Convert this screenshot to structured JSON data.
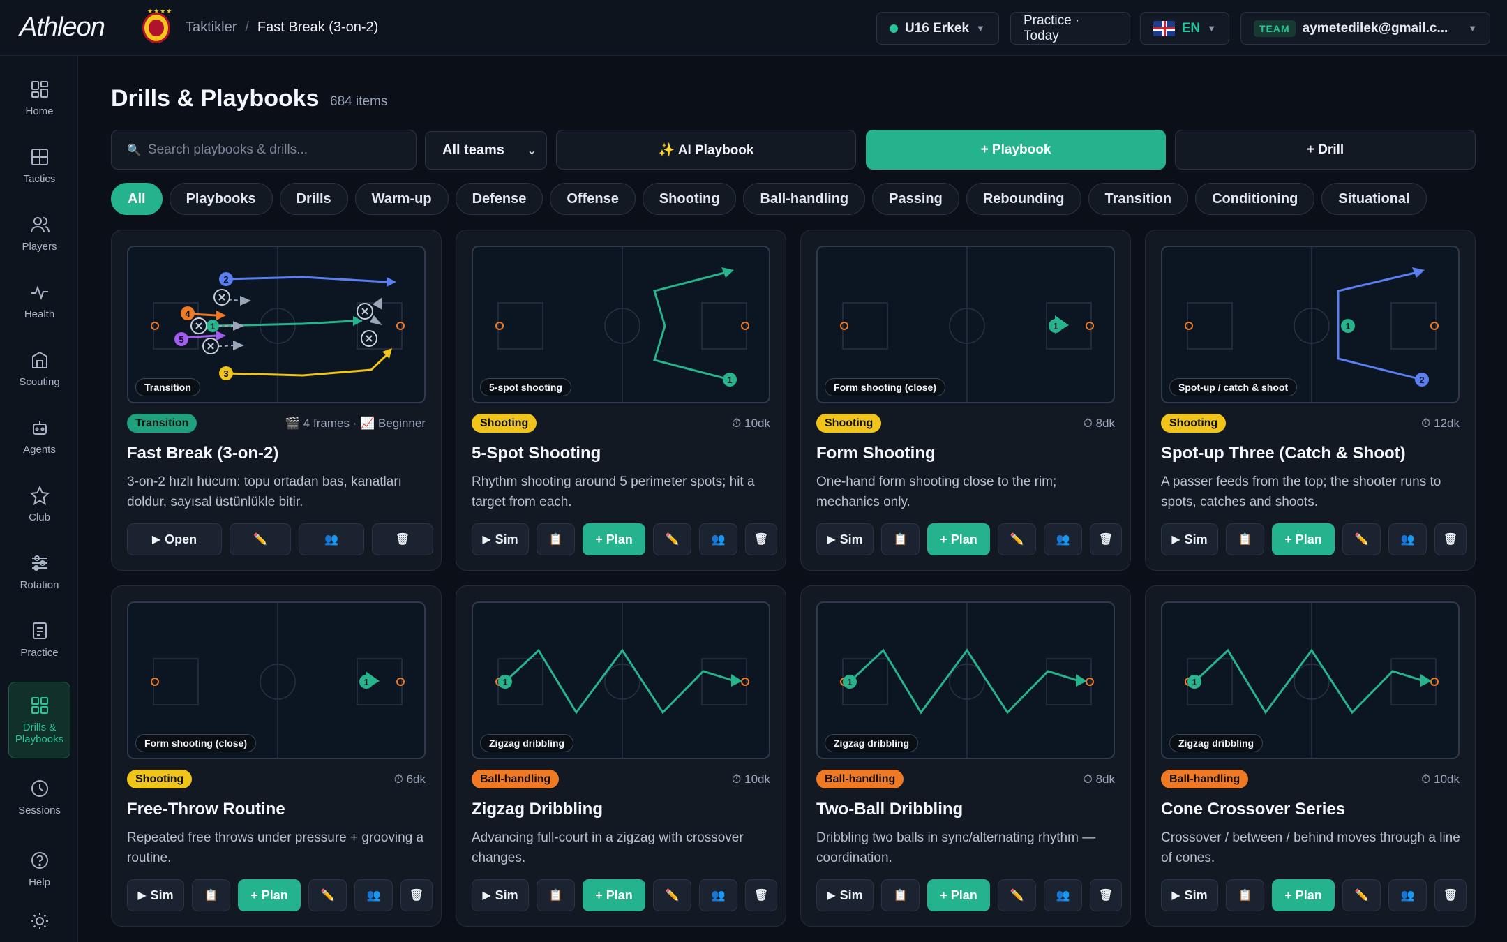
{
  "app": {
    "logo": "Athleon",
    "breadcrumb": {
      "parent": "Taktikler",
      "sep": "/",
      "current": "Fast Break (3-on-2)"
    }
  },
  "header": {
    "team_select": "U16 Erkek",
    "practice": "Practice · Today",
    "language": "EN",
    "team_tag": "TEAM",
    "user_email": "aymetedilek@gmail.c..."
  },
  "sidebar": {
    "items": [
      {
        "label": "Home",
        "icon": "home-icon"
      },
      {
        "label": "Tactics",
        "icon": "tactics-icon"
      },
      {
        "label": "Players",
        "icon": "players-icon"
      },
      {
        "label": "Health",
        "icon": "health-icon"
      },
      {
        "label": "Scouting",
        "icon": "scouting-icon"
      },
      {
        "label": "Agents",
        "icon": "agents-icon"
      },
      {
        "label": "Club",
        "icon": "star-icon"
      },
      {
        "label": "Rotation",
        "icon": "sliders-icon"
      },
      {
        "label": "Practice",
        "icon": "clipboard-icon"
      },
      {
        "label": "Drills & Playbooks",
        "icon": "grid-icon",
        "active": true
      },
      {
        "label": "Sessions",
        "icon": "clock-icon"
      },
      {
        "label": "Help",
        "icon": "help-icon"
      }
    ]
  },
  "main": {
    "title": "Drills & Playbooks",
    "count": "684 items",
    "search_placeholder": "Search playbooks & drills...",
    "team_filter": "All teams",
    "ai_button": "✨ AI Playbook",
    "playbook_button": "+ Playbook",
    "drill_button": "+ Drill",
    "chips": [
      "All",
      "Playbooks",
      "Drills",
      "Warm-up",
      "Defense",
      "Offense",
      "Shooting",
      "Ball-handling",
      "Passing",
      "Rebounding",
      "Transition",
      "Conditioning",
      "Situational"
    ]
  },
  "cards": [
    {
      "court_label": "Transition",
      "tag": "Transition",
      "meta": "🎬 4 frames · 📈 Beginner",
      "title": "Fast Break (3-on-2)",
      "desc": "3-on-2 hızlı hücum: topu ortadan bas, kanatları doldur, sayısal üstünlükle bitir.",
      "primary": "Open"
    },
    {
      "court_label": "5-spot shooting",
      "tag": "Shooting",
      "meta": "⏱ 10dk",
      "title": "5-Spot Shooting",
      "desc": "Rhythm shooting around 5 perimeter spots; hit a target from each.",
      "primary": "Sim",
      "plan": "+ Plan"
    },
    {
      "court_label": "Form shooting (close)",
      "tag": "Shooting",
      "meta": "⏱ 8dk",
      "title": "Form Shooting",
      "desc": "One-hand form shooting close to the rim; mechanics only.",
      "primary": "Sim",
      "plan": "+ Plan"
    },
    {
      "court_label": "Spot-up / catch & shoot",
      "tag": "Shooting",
      "meta": "⏱ 12dk",
      "title": "Spot-up Three (Catch & Shoot)",
      "desc": "A passer feeds from the top; the shooter runs to spots, catches and shoots.",
      "primary": "Sim",
      "plan": "+ Plan"
    },
    {
      "court_label": "Form shooting (close)",
      "tag": "Shooting",
      "meta": "⏱ 6dk",
      "title": "Free-Throw Routine",
      "desc": "Repeated free throws under pressure + grooving a routine.",
      "primary": "Sim",
      "plan": "+ Plan"
    },
    {
      "court_label": "Zigzag dribbling",
      "tag": "Ball-handling",
      "meta": "⏱ 10dk",
      "title": "Zigzag Dribbling",
      "desc": "Advancing full-court in a zigzag with crossover changes.",
      "primary": "Sim",
      "plan": "+ Plan"
    },
    {
      "court_label": "Zigzag dribbling",
      "tag": "Ball-handling",
      "meta": "⏱ 8dk",
      "title": "Two-Ball Dribbling",
      "desc": "Dribbling two balls in sync/alternating rhythm — coordination.",
      "primary": "Sim",
      "plan": "+ Plan"
    },
    {
      "court_label": "Zigzag dribbling",
      "tag": "Ball-handling",
      "meta": "⏱ 10dk",
      "title": "Cone Crossover Series",
      "desc": "Crossover / between / behind moves through a line of cones.",
      "primary": "Sim",
      "plan": "+ Plan"
    }
  ],
  "court_markers": {
    "fast_break": [
      "2",
      "4",
      "5",
      "3",
      "1"
    ],
    "five_spot": [
      "1"
    ],
    "form": [
      "1"
    ],
    "spot_up": [
      "1",
      "2"
    ]
  },
  "colors": {
    "accent": "#25b38e",
    "background": "#0b1018",
    "shooting": "#f0c419",
    "ballhandling": "#f07a24",
    "transition": "#1fa17e",
    "path_green": "#27b38c",
    "path_blue": "#5b7ff0",
    "path_yellow": "#f0c419",
    "path_orange": "#f07a24",
    "path_purple": "#a35cf0"
  }
}
